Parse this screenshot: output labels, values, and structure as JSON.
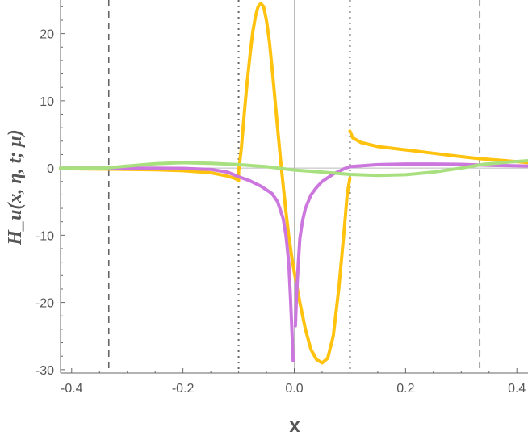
{
  "chart_data": {
    "type": "line",
    "xlabel": "x",
    "ylabel": "H_u(x, η, t; μ)",
    "xlim": [
      -0.42,
      0.42
    ],
    "ylim": [
      -30.5,
      25
    ],
    "x_ticks": [
      -0.4,
      -0.2,
      0.0,
      0.2,
      0.4
    ],
    "x_tick_labels": [
      "-0.4",
      "-0.2",
      "0.0",
      "0.2",
      "0.4"
    ],
    "y_ticks": [
      -30,
      -20,
      -10,
      0,
      10,
      20
    ],
    "y_tick_labels": [
      "-30",
      "-20",
      "-10",
      "0",
      "10",
      "20"
    ],
    "grid": false,
    "vertical_lines": [
      {
        "x": -0.3333,
        "style": "dashed"
      },
      {
        "x": 0.3333,
        "style": "dashed"
      },
      {
        "x": -0.1,
        "style": "dotted"
      },
      {
        "x": 0.1,
        "style": "dotted"
      }
    ],
    "series": [
      {
        "color": "#FFC20E",
        "segments": [
          [
            [
              -0.42,
              -0.1
            ],
            [
              -0.34,
              -0.15
            ],
            [
              -0.25,
              -0.25
            ],
            [
              -0.2,
              -0.4
            ],
            [
              -0.15,
              -0.7
            ],
            [
              -0.12,
              -1.2
            ],
            [
              -0.105,
              -1.6
            ],
            [
              -0.1,
              -1.9
            ],
            [
              -0.1,
              -0.5
            ],
            [
              -0.095,
              3
            ],
            [
              -0.09,
              8
            ],
            [
              -0.085,
              12.5
            ],
            [
              -0.08,
              16.5
            ],
            [
              -0.075,
              20
            ],
            [
              -0.07,
              22.5
            ],
            [
              -0.065,
              24
            ],
            [
              -0.06,
              24.5
            ],
            [
              -0.055,
              24
            ],
            [
              -0.05,
              22
            ],
            [
              -0.045,
              19
            ],
            [
              -0.04,
              15
            ],
            [
              -0.035,
              10.5
            ],
            [
              -0.03,
              6
            ],
            [
              -0.025,
              1.5
            ],
            [
              -0.02,
              -2.5
            ],
            [
              -0.015,
              -6.5
            ],
            [
              -0.01,
              -10
            ],
            [
              -0.005,
              -13
            ],
            [
              0,
              -15.5
            ],
            [
              0.01,
              -20
            ],
            [
              0.02,
              -24
            ],
            [
              0.03,
              -27
            ],
            [
              0.04,
              -28.5
            ],
            [
              0.05,
              -29
            ],
            [
              0.06,
              -28.3
            ],
            [
              0.07,
              -25
            ],
            [
              0.08,
              -18
            ],
            [
              0.09,
              -9
            ],
            [
              0.095,
              -4
            ],
            [
              0.1,
              -1.5
            ]
          ],
          [
            [
              0.1,
              5.5
            ],
            [
              0.105,
              4.5
            ],
            [
              0.12,
              3.8
            ],
            [
              0.15,
              3.2
            ],
            [
              0.2,
              2.7
            ],
            [
              0.25,
              2.2
            ],
            [
              0.3,
              1.7
            ],
            [
              0.3333,
              1.4
            ],
            [
              0.38,
              1.1
            ],
            [
              0.42,
              0.8
            ]
          ]
        ]
      },
      {
        "color": "#CC77DD",
        "segments": [
          [
            [
              -0.42,
              0
            ],
            [
              -0.3,
              0
            ],
            [
              -0.2,
              -0.05
            ],
            [
              -0.15,
              -0.2
            ],
            [
              -0.12,
              -0.6
            ],
            [
              -0.1,
              -1.3
            ],
            [
              -0.08,
              -1.9
            ],
            [
              -0.06,
              -2.7
            ],
            [
              -0.04,
              -3.8
            ],
            [
              -0.03,
              -5
            ],
            [
              -0.02,
              -7.5
            ],
            [
              -0.015,
              -10
            ],
            [
              -0.01,
              -14
            ],
            [
              -0.007,
              -19
            ],
            [
              -0.004,
              -24.5
            ],
            [
              -0.002,
              -28.7
            ]
          ],
          [
            [
              0.002,
              -23.5
            ],
            [
              0.004,
              -19
            ],
            [
              0.007,
              -14.5
            ],
            [
              0.01,
              -10.5
            ],
            [
              0.015,
              -7.8
            ],
            [
              0.02,
              -6
            ],
            [
              0.03,
              -4
            ],
            [
              0.04,
              -2.9
            ],
            [
              0.05,
              -2
            ],
            [
              0.07,
              -0.9
            ],
            [
              0.09,
              -0.1
            ],
            [
              0.1,
              0.2
            ],
            [
              0.15,
              0.5
            ],
            [
              0.2,
              0.6
            ],
            [
              0.25,
              0.6
            ],
            [
              0.3,
              0.55
            ],
            [
              0.35,
              0.4
            ],
            [
              0.42,
              0.3
            ]
          ]
        ]
      },
      {
        "color": "#A8E080",
        "segments": [
          [
            [
              -0.42,
              0
            ],
            [
              -0.34,
              0
            ],
            [
              -0.3,
              0.3
            ],
            [
              -0.25,
              0.65
            ],
            [
              -0.2,
              0.8
            ],
            [
              -0.15,
              0.7
            ],
            [
              -0.1,
              0.5
            ],
            [
              -0.05,
              0.2
            ],
            [
              0,
              -0.3
            ],
            [
              0.05,
              -0.6
            ],
            [
              0.1,
              -0.95
            ],
            [
              0.15,
              -1.1
            ],
            [
              0.2,
              -1
            ],
            [
              0.25,
              -0.6
            ],
            [
              0.3,
              0
            ],
            [
              0.34,
              0.55
            ],
            [
              0.38,
              0.85
            ],
            [
              0.42,
              1.1
            ]
          ]
        ]
      }
    ]
  }
}
